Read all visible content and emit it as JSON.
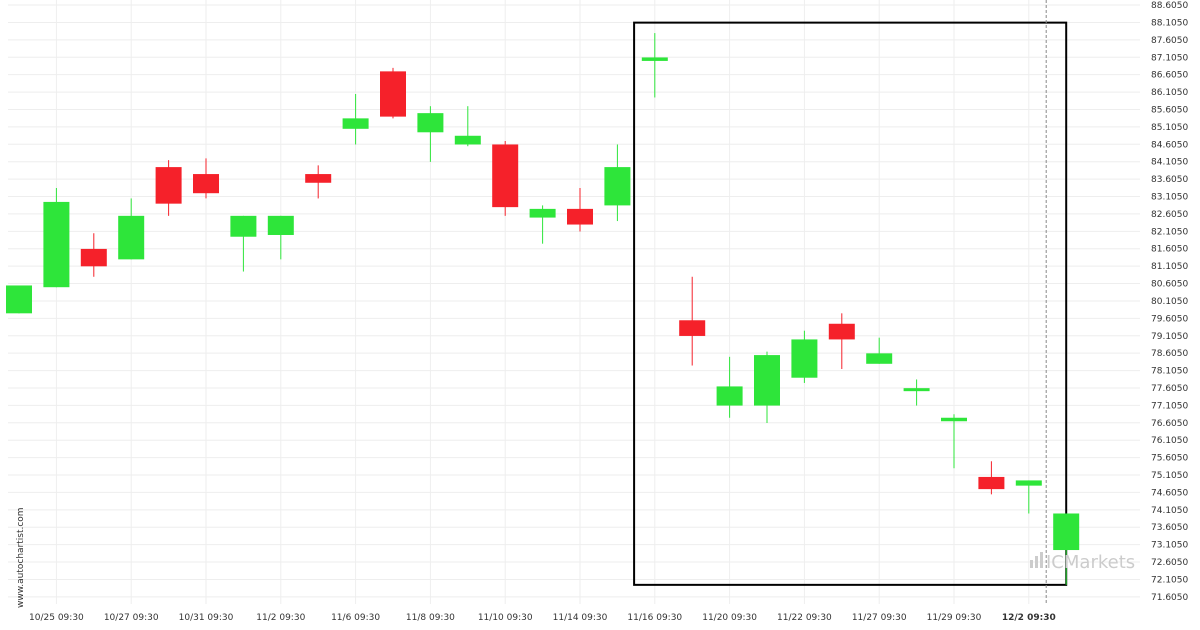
{
  "watermark": "www.autochartist.com",
  "logo": "ICMarkets",
  "colors": {
    "up": "#2ee53a",
    "down": "#f5212a",
    "grid": "#eeeeee",
    "box": "#000000",
    "axis_text": "#333333"
  },
  "chart_data": {
    "type": "candlestick",
    "title": "",
    "xlabel": "",
    "ylabel": "",
    "ylim": [
      71.4,
      88.75
    ],
    "y_ticks": [
      "88.6050",
      "88.1050",
      "87.6050",
      "87.1050",
      "86.6050",
      "86.1050",
      "85.6050",
      "85.1050",
      "84.6050",
      "84.1050",
      "83.6050",
      "83.1050",
      "82.6050",
      "82.1050",
      "81.6050",
      "81.1050",
      "80.6050",
      "80.1050",
      "79.6050",
      "79.1050",
      "78.6050",
      "78.1050",
      "77.6050",
      "77.1050",
      "76.6050",
      "76.1050",
      "75.6050",
      "75.1050",
      "74.6050",
      "74.1050",
      "73.6050",
      "73.1050",
      "72.6050",
      "72.1050",
      "71.6050"
    ],
    "x_tick_labels": [
      {
        "index": 1,
        "label": "10/25 09:30"
      },
      {
        "index": 3,
        "label": "10/27 09:30"
      },
      {
        "index": 5,
        "label": "10/31 09:30"
      },
      {
        "index": 7,
        "label": "11/2 09:30"
      },
      {
        "index": 9,
        "label": "11/6 09:30"
      },
      {
        "index": 11,
        "label": "11/8 09:30"
      },
      {
        "index": 13,
        "label": "11/10 09:30"
      },
      {
        "index": 15,
        "label": "11/14 09:30"
      },
      {
        "index": 17,
        "label": "11/16 09:30"
      },
      {
        "index": 19,
        "label": "11/20 09:30"
      },
      {
        "index": 21,
        "label": "11/22 09:30"
      },
      {
        "index": 23,
        "label": "11/27 09:30"
      },
      {
        "index": 25,
        "label": "11/29 09:30"
      },
      {
        "index": 27,
        "label": "12/2 09:30"
      }
    ],
    "candles": [
      {
        "o": 79.75,
        "h": 80.55,
        "l": 79.75,
        "c": 80.55
      },
      {
        "o": 80.5,
        "h": 83.35,
        "l": 80.5,
        "c": 82.95
      },
      {
        "o": 81.6,
        "h": 82.05,
        "l": 80.8,
        "c": 81.1
      },
      {
        "o": 81.3,
        "h": 83.05,
        "l": 81.3,
        "c": 82.55
      },
      {
        "o": 83.95,
        "h": 84.15,
        "l": 82.55,
        "c": 82.9
      },
      {
        "o": 83.75,
        "h": 84.2,
        "l": 83.05,
        "c": 83.2
      },
      {
        "o": 81.95,
        "h": 82.55,
        "l": 80.95,
        "c": 82.55
      },
      {
        "o": 82.0,
        "h": 82.55,
        "l": 81.3,
        "c": 82.55
      },
      {
        "o": 83.75,
        "h": 84.0,
        "l": 83.05,
        "c": 83.5
      },
      {
        "o": 85.05,
        "h": 86.05,
        "l": 84.6,
        "c": 85.35
      },
      {
        "o": 86.7,
        "h": 86.8,
        "l": 85.35,
        "c": 85.4
      },
      {
        "o": 84.95,
        "h": 85.7,
        "l": 84.1,
        "c": 85.5
      },
      {
        "o": 84.6,
        "h": 85.7,
        "l": 84.55,
        "c": 84.85
      },
      {
        "o": 84.6,
        "h": 84.7,
        "l": 82.55,
        "c": 82.8
      },
      {
        "o": 82.5,
        "h": 82.85,
        "l": 81.75,
        "c": 82.75
      },
      {
        "o": 82.75,
        "h": 83.35,
        "l": 82.1,
        "c": 82.3
      },
      {
        "o": 82.85,
        "h": 84.6,
        "l": 82.4,
        "c": 83.95
      },
      {
        "o": 87.0,
        "h": 87.8,
        "l": 85.95,
        "c": 87.1
      },
      {
        "o": 79.55,
        "h": 80.8,
        "l": 78.25,
        "c": 79.1
      },
      {
        "o": 77.1,
        "h": 78.5,
        "l": 76.75,
        "c": 77.65
      },
      {
        "o": 77.1,
        "h": 78.65,
        "l": 76.6,
        "c": 78.55
      },
      {
        "o": 77.9,
        "h": 79.25,
        "l": 77.75,
        "c": 79.0
      },
      {
        "o": 79.45,
        "h": 79.75,
        "l": 78.15,
        "c": 79.0
      },
      {
        "o": 78.3,
        "h": 79.05,
        "l": 78.3,
        "c": 78.6
      },
      {
        "o": 77.55,
        "h": 77.85,
        "l": 77.1,
        "c": 77.6
      },
      {
        "o": 76.65,
        "h": 76.85,
        "l": 75.3,
        "c": 76.75
      },
      {
        "o": 75.05,
        "h": 75.5,
        "l": 74.55,
        "c": 74.7
      },
      {
        "o": 74.8,
        "h": 74.95,
        "l": 74.0,
        "c": 74.95
      },
      {
        "o": 72.95,
        "h": 74.0,
        "l": 71.95,
        "c": 74.0
      }
    ],
    "highlight": {
      "from_index": 17,
      "to_index": 28,
      "y_top": 88.1,
      "y_bottom": 71.95
    },
    "vline_index": 28,
    "grid": true
  }
}
